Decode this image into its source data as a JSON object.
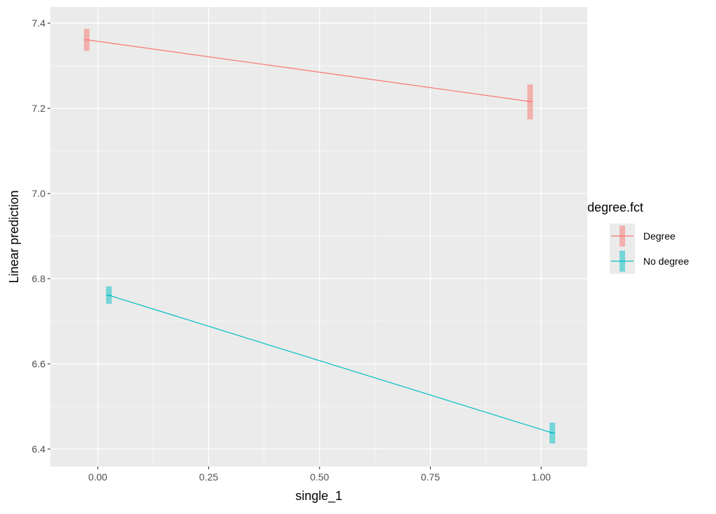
{
  "chart_data": {
    "type": "line",
    "xlabel": "single_1",
    "ylabel": "Linear prediction",
    "xlim": [
      -0.107,
      1.104
    ],
    "ylim": [
      6.359,
      7.438
    ],
    "xticks": [
      0,
      0.25,
      0.5,
      0.75,
      1
    ],
    "xtick_labels": [
      "0.00",
      "0.25",
      "0.50",
      "0.75",
      "1.00"
    ],
    "yticks": [
      6.4,
      6.6,
      6.8,
      7.0,
      7.2,
      7.4
    ],
    "ytick_labels": [
      "6.4",
      "6.6",
      "6.8",
      "7.0",
      "7.2",
      "7.4"
    ],
    "grid": true,
    "legend": {
      "title": "degree.fct",
      "placement": "right"
    },
    "series": [
      {
        "name": "Degree",
        "color": "#F8766D",
        "x": [
          -0.025,
          0.975
        ],
        "y": [
          7.361,
          7.216
        ],
        "ymin": [
          7.335,
          7.174
        ],
        "ymax": [
          7.387,
          7.256
        ]
      },
      {
        "name": "No degree",
        "color": "#00BFC4",
        "x": [
          0.025,
          1.025
        ],
        "y": [
          6.761,
          6.438
        ],
        "ymin": [
          6.741,
          6.413
        ],
        "ymax": [
          6.782,
          6.462
        ]
      }
    ]
  }
}
